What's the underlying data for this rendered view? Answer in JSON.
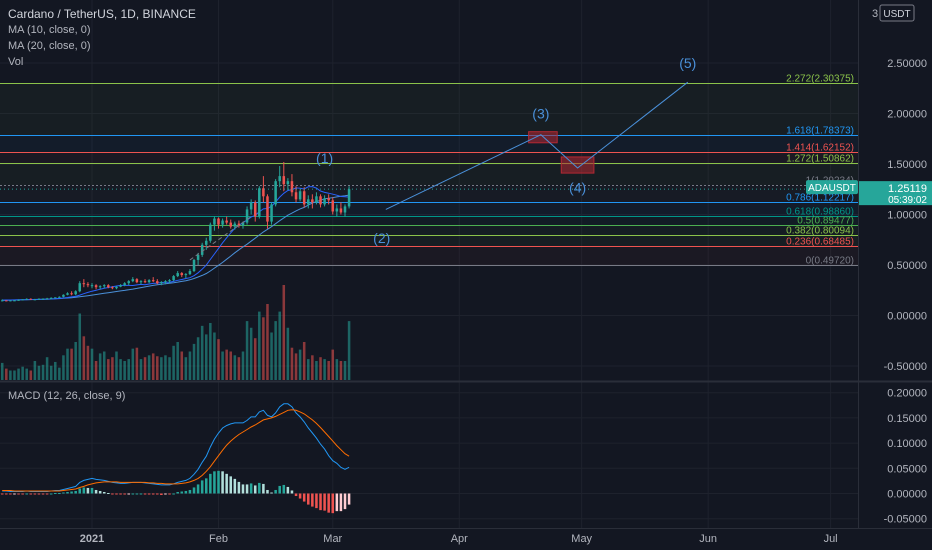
{
  "header": {
    "symbol_line": "Cardano / TetherUS, 1D, BINANCE",
    "indicators": [
      "MA (10, close, 0)",
      "MA (20, close, 0)",
      "Vol"
    ],
    "macd_label": "MACD (12, 26, close, 9)"
  },
  "price_axis": {
    "currency_prefix": "3",
    "currency": "USDT",
    "ticks": [
      "2.50000",
      "2.00000",
      "1.50000",
      "1.00000",
      "0.50000",
      "0.00000",
      "-0.50000"
    ],
    "current_symbol": "ADAUSDT",
    "current_price": "1.25119",
    "countdown": "05:39:02"
  },
  "macd_axis": {
    "ticks": [
      "0.20000",
      "0.15000",
      "0.10000",
      "0.05000",
      "0.00000",
      "-0.05000"
    ]
  },
  "time_axis": {
    "ticks": [
      "2021",
      "Feb",
      "Mar",
      "Apr",
      "May",
      "Jun",
      "Jul"
    ]
  },
  "colors": {
    "background": "#131722",
    "bull": "#26a69a",
    "bear": "#ef5350",
    "ma10": "#2962ff",
    "ma20": "#4a90d9",
    "macd_line": "#2196f3",
    "signal_line": "#ff6d00",
    "wave": "#4a90d9",
    "box": "#b22833"
  },
  "fib_levels": [
    {
      "ratio": "2.272",
      "price": 2.30375,
      "label": "2.272(2.30375)",
      "color": "#8bc34a"
    },
    {
      "ratio": "1.618",
      "price": 1.78373,
      "label": "1.618(1.78373)",
      "color": "#2196f3"
    },
    {
      "ratio": "1.414",
      "price": 1.62152,
      "label": "1.414(1.62152)",
      "color": "#ef5350"
    },
    {
      "ratio": "1.272",
      "price": 1.50862,
      "label": "1.272(1.50862)",
      "color": "#8bc34a"
    },
    {
      "ratio": "1",
      "price": 1.29234,
      "label": "1(1.29234)",
      "color": "#787b86"
    },
    {
      "ratio": "0.786",
      "price": 1.12217,
      "label": "0.786(1.12217)",
      "color": "#2196f3"
    },
    {
      "ratio": "0.618",
      "price": 0.9886,
      "label": "0.618(0.98860)",
      "color": "#009688"
    },
    {
      "ratio": "0.5",
      "price": 0.89477,
      "label": "0.5(0.89477)",
      "color": "#4caf50"
    },
    {
      "ratio": "0.382",
      "price": 0.80094,
      "label": "0.382(0.80094)",
      "color": "#8bc34a"
    },
    {
      "ratio": "0.236",
      "price": 0.68485,
      "label": "0.236(0.68485)",
      "color": "#ef5350"
    },
    {
      "ratio": "0",
      "price": 0.4972,
      "label": "0(0.49720)",
      "color": "#787b86"
    }
  ],
  "wave_labels": [
    {
      "label": "(1)",
      "date": "2021-02-27",
      "price": 1.51
    },
    {
      "label": "(2)",
      "date": "2021-03-13",
      "price": 0.72
    },
    {
      "label": "(3)",
      "date": "2021-04-21",
      "price": 1.95
    },
    {
      "label": "(4)",
      "date": "2021-04-30",
      "price": 1.22
    },
    {
      "label": "(5)",
      "date": "2021-05-27",
      "price": 2.45
    }
  ],
  "wave_path": [
    {
      "date": "2021-03-14",
      "price": 1.05
    },
    {
      "date": "2021-04-21",
      "price": 1.79
    },
    {
      "date": "2021-04-30",
      "price": 1.46
    },
    {
      "date": "2021-05-27",
      "price": 2.31
    }
  ],
  "target_boxes": [
    {
      "date_from": "2021-04-18",
      "date_to": "2021-04-25",
      "price_from": 1.71,
      "price_to": 1.82
    },
    {
      "date_from": "2021-04-26",
      "date_to": "2021-05-04",
      "price_from": 1.41,
      "price_to": 1.57
    }
  ],
  "chart_data": [
    {
      "type": "candlestick",
      "title": "Cardano / TetherUS, 1D, BINANCE",
      "x_start": "2020-12-10",
      "ylim": [
        -0.75,
        3.0
      ],
      "ohlc": [
        [
          0.15,
          0.16,
          0.14,
          0.15
        ],
        [
          0.15,
          0.15,
          0.14,
          0.145
        ],
        [
          0.145,
          0.15,
          0.14,
          0.15
        ],
        [
          0.15,
          0.155,
          0.145,
          0.15
        ],
        [
          0.15,
          0.16,
          0.145,
          0.155
        ],
        [
          0.155,
          0.16,
          0.15,
          0.16
        ],
        [
          0.16,
          0.17,
          0.155,
          0.165
        ],
        [
          0.165,
          0.17,
          0.16,
          0.16
        ],
        [
          0.16,
          0.165,
          0.155,
          0.16
        ],
        [
          0.16,
          0.17,
          0.155,
          0.165
        ],
        [
          0.165,
          0.17,
          0.16,
          0.165
        ],
        [
          0.165,
          0.175,
          0.16,
          0.17
        ],
        [
          0.17,
          0.18,
          0.16,
          0.175
        ],
        [
          0.175,
          0.18,
          0.17,
          0.18
        ],
        [
          0.18,
          0.19,
          0.175,
          0.185
        ],
        [
          0.185,
          0.21,
          0.18,
          0.205
        ],
        [
          0.205,
          0.23,
          0.2,
          0.22
        ],
        [
          0.22,
          0.24,
          0.2,
          0.21
        ],
        [
          0.21,
          0.25,
          0.2,
          0.24
        ],
        [
          0.24,
          0.34,
          0.23,
          0.32
        ],
        [
          0.32,
          0.36,
          0.28,
          0.31
        ],
        [
          0.31,
          0.33,
          0.28,
          0.3
        ],
        [
          0.3,
          0.32,
          0.27,
          0.3
        ],
        [
          0.3,
          0.31,
          0.26,
          0.28
        ],
        [
          0.28,
          0.3,
          0.26,
          0.29
        ],
        [
          0.29,
          0.31,
          0.27,
          0.3
        ],
        [
          0.3,
          0.31,
          0.27,
          0.28
        ],
        [
          0.28,
          0.29,
          0.26,
          0.27
        ],
        [
          0.27,
          0.29,
          0.26,
          0.285
        ],
        [
          0.285,
          0.31,
          0.28,
          0.3
        ],
        [
          0.3,
          0.33,
          0.29,
          0.32
        ],
        [
          0.32,
          0.35,
          0.3,
          0.34
        ],
        [
          0.34,
          0.38,
          0.33,
          0.36
        ],
        [
          0.36,
          0.37,
          0.32,
          0.33
        ],
        [
          0.33,
          0.35,
          0.31,
          0.34
        ],
        [
          0.34,
          0.36,
          0.32,
          0.33
        ],
        [
          0.33,
          0.36,
          0.32,
          0.35
        ],
        [
          0.35,
          0.38,
          0.33,
          0.34
        ],
        [
          0.34,
          0.36,
          0.31,
          0.32
        ],
        [
          0.32,
          0.34,
          0.3,
          0.33
        ],
        [
          0.33,
          0.35,
          0.31,
          0.34
        ],
        [
          0.34,
          0.36,
          0.32,
          0.35
        ],
        [
          0.35,
          0.4,
          0.34,
          0.39
        ],
        [
          0.39,
          0.44,
          0.38,
          0.42
        ],
        [
          0.42,
          0.43,
          0.38,
          0.4
        ],
        [
          0.4,
          0.42,
          0.37,
          0.41
        ],
        [
          0.41,
          0.46,
          0.4,
          0.44
        ],
        [
          0.44,
          0.56,
          0.43,
          0.55
        ],
        [
          0.55,
          0.62,
          0.5,
          0.6
        ],
        [
          0.6,
          0.72,
          0.58,
          0.7
        ],
        [
          0.7,
          0.77,
          0.65,
          0.74
        ],
        [
          0.74,
          0.92,
          0.72,
          0.9
        ],
        [
          0.9,
          0.98,
          0.84,
          0.96
        ],
        [
          0.96,
          0.97,
          0.86,
          0.9
        ],
        [
          0.9,
          0.96,
          0.87,
          0.94
        ],
        [
          0.94,
          0.98,
          0.9,
          0.92
        ],
        [
          0.92,
          0.95,
          0.86,
          0.88
        ],
        [
          0.88,
          0.93,
          0.85,
          0.91
        ],
        [
          0.91,
          0.94,
          0.87,
          0.89
        ],
        [
          0.89,
          0.93,
          0.86,
          0.92
        ],
        [
          0.92,
          1.08,
          0.9,
          1.05
        ],
        [
          1.05,
          1.15,
          1.0,
          1.12
        ],
        [
          1.12,
          1.14,
          0.93,
          0.98
        ],
        [
          0.98,
          1.28,
          0.96,
          1.26
        ],
        [
          1.26,
          1.38,
          1.12,
          1.18
        ],
        [
          1.18,
          1.2,
          0.86,
          0.93
        ],
        [
          0.93,
          1.12,
          0.9,
          1.1
        ],
        [
          1.1,
          1.35,
          1.08,
          1.33
        ],
        [
          1.33,
          1.48,
          1.27,
          1.38
        ],
        [
          1.38,
          1.52,
          1.23,
          1.3
        ],
        [
          1.3,
          1.36,
          1.24,
          1.33
        ],
        [
          1.33,
          1.4,
          1.18,
          1.22
        ],
        [
          1.22,
          1.28,
          1.12,
          1.15
        ],
        [
          1.15,
          1.25,
          1.13,
          1.23
        ],
        [
          1.23,
          1.27,
          1.07,
          1.1
        ],
        [
          1.1,
          1.19,
          1.06,
          1.15
        ],
        [
          1.15,
          1.2,
          1.06,
          1.12
        ],
        [
          1.12,
          1.22,
          1.1,
          1.18
        ],
        [
          1.18,
          1.2,
          1.07,
          1.1
        ],
        [
          1.1,
          1.19,
          1.08,
          1.16
        ],
        [
          1.16,
          1.2,
          1.1,
          1.14
        ],
        [
          1.14,
          1.17,
          1.0,
          1.03
        ],
        [
          1.03,
          1.1,
          0.98,
          1.06
        ],
        [
          1.06,
          1.12,
          1.0,
          1.02
        ],
        [
          1.02,
          1.1,
          0.98,
          1.08
        ],
        [
          1.08,
          1.28,
          1.06,
          1.25
        ]
      ]
    },
    {
      "type": "line",
      "name": "MA (10, close, 0)",
      "values": [
        0.1525,
        0.153,
        0.1535,
        0.1545,
        0.1555,
        0.1565,
        0.1575,
        0.158,
        0.1585,
        0.1595,
        0.1605,
        0.162,
        0.1635,
        0.166,
        0.169,
        0.1735,
        0.1785,
        0.184,
        0.189,
        0.2015,
        0.2155,
        0.2285,
        0.2405,
        0.25,
        0.2605,
        0.2695,
        0.2775,
        0.2855,
        0.2925,
        0.2985,
        0.2985,
        0.2985,
        0.2975,
        0.3025,
        0.3075,
        0.3045,
        0.3115,
        0.3175,
        0.3205,
        0.3265,
        0.3285,
        0.3295,
        0.3375,
        0.3485,
        0.3565,
        0.3665,
        0.3745,
        0.3945,
        0.4225,
        0.4595,
        0.4995,
        0.5545,
        0.6085,
        0.6645,
        0.7195,
        0.7705,
        0.8175,
        0.8635,
        0.8925,
        0.9195,
        0.9445,
        0.9745,
        0.9925,
        1.0265,
        1.0555,
        1.0595,
        1.0815,
        1.1235,
        1.1725,
        1.2095,
        1.2375,
        1.2465,
        1.2635,
        1.2605,
        1.2525,
        1.2745,
        1.2765,
        1.2615,
        1.2325,
        1.2185,
        1.2105,
        1.2005,
        1.1915,
        1.1785,
        1.1765,
        1.1725
      ]
    },
    {
      "type": "line",
      "name": "MA (20, close, 0)",
      "values": [
        0.15,
        0.15,
        0.152,
        0.153,
        0.154,
        0.155,
        0.156,
        0.157,
        0.158,
        0.159,
        0.16,
        0.161,
        0.163,
        0.165,
        0.167,
        0.17,
        0.173,
        0.176,
        0.18,
        0.185,
        0.19,
        0.196,
        0.202,
        0.208,
        0.214,
        0.22,
        0.226,
        0.232,
        0.238,
        0.244,
        0.249,
        0.255,
        0.261,
        0.268,
        0.276,
        0.283,
        0.291,
        0.298,
        0.305,
        0.31,
        0.315,
        0.32,
        0.325,
        0.331,
        0.338,
        0.345,
        0.353,
        0.366,
        0.381,
        0.397,
        0.416,
        0.441,
        0.469,
        0.497,
        0.526,
        0.557,
        0.588,
        0.621,
        0.65,
        0.679,
        0.706,
        0.736,
        0.765,
        0.797,
        0.828,
        0.853,
        0.879,
        0.909,
        0.939,
        0.966,
        0.993,
        1.014,
        1.036,
        1.055,
        1.07,
        1.093,
        1.114,
        1.128,
        1.141,
        1.155,
        1.16,
        1.167,
        1.174,
        1.181,
        1.185,
        1.192
      ]
    },
    {
      "type": "bar",
      "name": "Vol",
      "note_units": "relative volume (0-1)",
      "values": [
        0.18,
        0.12,
        0.1,
        0.1,
        0.12,
        0.14,
        0.12,
        0.1,
        0.2,
        0.15,
        0.16,
        0.24,
        0.15,
        0.19,
        0.13,
        0.26,
        0.33,
        0.33,
        0.4,
        0.7,
        0.46,
        0.36,
        0.33,
        0.2,
        0.28,
        0.3,
        0.22,
        0.24,
        0.3,
        0.22,
        0.2,
        0.22,
        0.33,
        0.34,
        0.22,
        0.24,
        0.26,
        0.28,
        0.25,
        0.24,
        0.26,
        0.24,
        0.36,
        0.4,
        0.3,
        0.24,
        0.3,
        0.38,
        0.45,
        0.57,
        0.48,
        0.6,
        0.5,
        0.43,
        0.3,
        0.32,
        0.3,
        0.26,
        0.24,
        0.3,
        0.62,
        0.55,
        0.44,
        0.72,
        0.66,
        0.8,
        0.5,
        0.62,
        0.72,
        1.0,
        0.55,
        0.34,
        0.28,
        0.32,
        0.4,
        0.22,
        0.26,
        0.2,
        0.24,
        0.22,
        0.2,
        0.32,
        0.22,
        0.2,
        0.2,
        0.62
      ]
    },
    {
      "type": "line",
      "title": "MACD (12, 26, close, 9)",
      "ylim": [
        -0.07,
        0.22
      ],
      "series": [
        {
          "name": "MACD",
          "values": [
            0.005,
            0.005,
            0.004,
            0.004,
            0.004,
            0.004,
            0.005,
            0.004,
            0.004,
            0.004,
            0.004,
            0.004,
            0.005,
            0.006,
            0.006,
            0.008,
            0.01,
            0.012,
            0.014,
            0.022,
            0.026,
            0.028,
            0.03,
            0.028,
            0.027,
            0.026,
            0.024,
            0.022,
            0.021,
            0.02,
            0.02,
            0.021,
            0.022,
            0.022,
            0.022,
            0.021,
            0.02,
            0.019,
            0.018,
            0.017,
            0.017,
            0.017,
            0.019,
            0.022,
            0.024,
            0.026,
            0.03,
            0.038,
            0.048,
            0.062,
            0.074,
            0.092,
            0.108,
            0.12,
            0.13,
            0.135,
            0.138,
            0.14,
            0.14,
            0.14,
            0.145,
            0.152,
            0.152,
            0.162,
            0.165,
            0.155,
            0.152,
            0.16,
            0.172,
            0.178,
            0.178,
            0.172,
            0.16,
            0.152,
            0.142,
            0.13,
            0.12,
            0.11,
            0.098,
            0.088,
            0.075,
            0.065,
            0.06,
            0.052,
            0.048,
            0.052
          ]
        },
        {
          "name": "Signal",
          "values": [
            0.006,
            0.006,
            0.006,
            0.005,
            0.005,
            0.005,
            0.005,
            0.005,
            0.005,
            0.005,
            0.005,
            0.005,
            0.005,
            0.005,
            0.005,
            0.006,
            0.007,
            0.008,
            0.009,
            0.012,
            0.014,
            0.017,
            0.019,
            0.021,
            0.022,
            0.023,
            0.023,
            0.023,
            0.023,
            0.022,
            0.022,
            0.022,
            0.022,
            0.022,
            0.022,
            0.022,
            0.021,
            0.021,
            0.02,
            0.02,
            0.019,
            0.019,
            0.019,
            0.019,
            0.02,
            0.021,
            0.023,
            0.026,
            0.03,
            0.036,
            0.044,
            0.053,
            0.064,
            0.075,
            0.086,
            0.096,
            0.104,
            0.111,
            0.117,
            0.122,
            0.127,
            0.132,
            0.136,
            0.141,
            0.146,
            0.148,
            0.15,
            0.153,
            0.157,
            0.161,
            0.165,
            0.166,
            0.165,
            0.162,
            0.158,
            0.152,
            0.146,
            0.139,
            0.131,
            0.122,
            0.113,
            0.104,
            0.095,
            0.087,
            0.079,
            0.074
          ]
        }
      ]
    }
  ]
}
